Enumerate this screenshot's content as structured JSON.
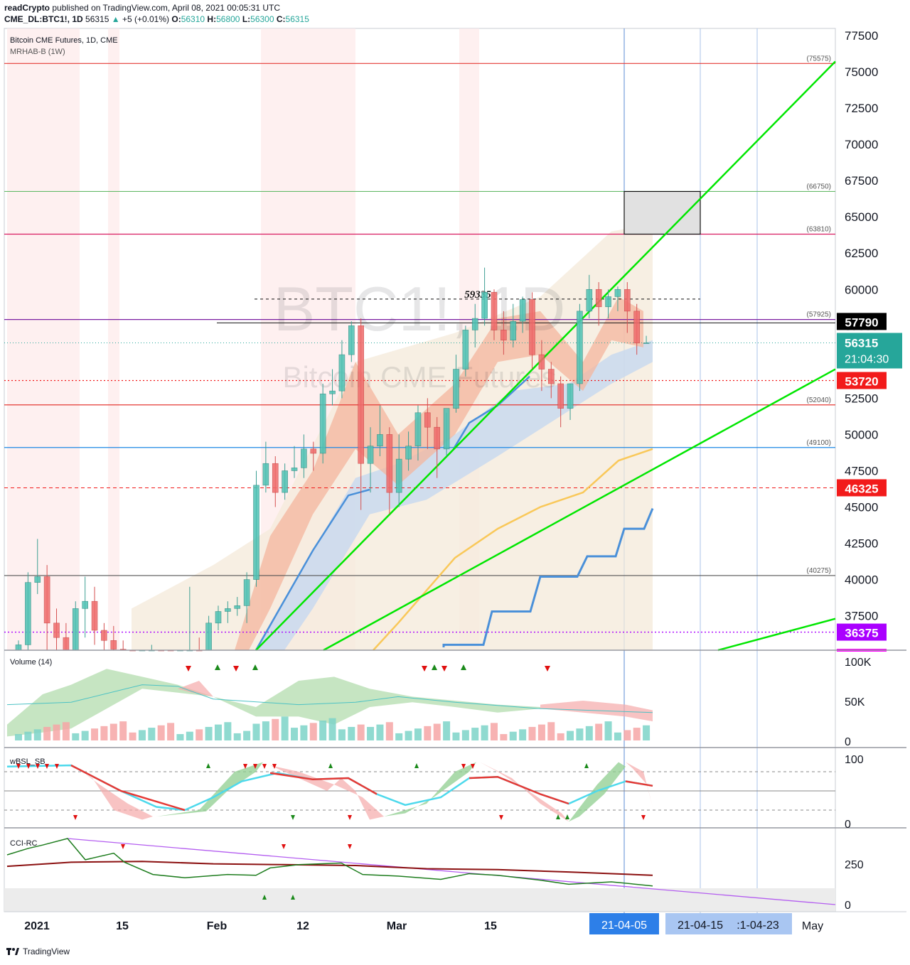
{
  "header": {
    "publisher": "readCrypto",
    "published_text": "published on TradingView.com, April 08, 2021 00:05:31 UTC",
    "symbol": "CME_DL:BTC1!, 1D",
    "last": "56315",
    "change": "+5 (+0.01%)",
    "open_label": "O:",
    "open": "56310",
    "high_label": "H:",
    "high": "56800",
    "low_label": "L:",
    "low": "56300",
    "close_label": "C:",
    "close": "56315"
  },
  "main_pane": {
    "title": "Bitcoin CME Futures, 1D, CME",
    "indicator": "MRHAB-B (1W)",
    "watermark_symbol": "BTC1!, 1D",
    "watermark_name": "Bitcoin CME Futures",
    "annotation": "59335",
    "price_axis": [
      "77500",
      "75000",
      "72500",
      "70000",
      "67500",
      "65000",
      "62500",
      "60000",
      "57500",
      "55000",
      "52500",
      "50000",
      "47500",
      "45000",
      "42500",
      "40000",
      "37500"
    ],
    "levels": [
      {
        "value": 75575,
        "label": "(75575)",
        "color": "#e53935",
        "style": "solid"
      },
      {
        "value": 66750,
        "label": "(66750)",
        "color": "#66bb6a",
        "style": "solid"
      },
      {
        "value": 63810,
        "label": "(63810)",
        "color": "#d81b60",
        "style": "solid"
      },
      {
        "value": 57925,
        "label": "(57925)",
        "color": "#7b1fa2",
        "style": "solid"
      },
      {
        "value": 52040,
        "label": "(52040)",
        "color": "#e53935",
        "style": "solid"
      },
      {
        "value": 49100,
        "label": "(49100)",
        "color": "#1e88e5",
        "style": "solid"
      },
      {
        "value": 40275,
        "label": "(40275)",
        "color": "#555555",
        "style": "solid"
      }
    ],
    "price_tags": [
      {
        "value": 57790,
        "label": "57790",
        "bg": "#000000",
        "fg": "#ffffff"
      },
      {
        "value": 53720,
        "label": "53720",
        "bg": "#f21b1b",
        "fg": "#ffffff"
      },
      {
        "value": 46325,
        "label": "46325",
        "bg": "#f21b1b",
        "fg": "#ffffff"
      },
      {
        "value": 36375,
        "label": "36375",
        "bg": "#aa00ff",
        "fg": "#ffffff"
      }
    ],
    "current_price": {
      "price": "56315",
      "countdown": "21:04:30",
      "value": 56315
    }
  },
  "volume_pane": {
    "title": "Volume (14)",
    "axis": [
      "100K",
      "50K",
      "0"
    ]
  },
  "wbsl_pane": {
    "title": "wBSL_SB",
    "axis": [
      "100",
      "0"
    ]
  },
  "cci_pane": {
    "title": "CCI-RC",
    "axis": [
      "250",
      "0"
    ]
  },
  "time_axis": {
    "labels": [
      {
        "text": "2021",
        "bold": true
      },
      {
        "text": "15",
        "bold": true
      },
      {
        "text": "Feb",
        "bold": true
      },
      {
        "text": "12",
        "bold": true
      },
      {
        "text": "Mar",
        "bold": true
      },
      {
        "text": "15",
        "bold": true
      },
      {
        "text": "May",
        "bold": false
      }
    ],
    "highlight_labels": [
      "21-04-05",
      "21-04-15",
      ":1-04-23"
    ]
  },
  "footer": {
    "brand": "TradingView"
  },
  "colors": {
    "up": "#26a69a",
    "down": "#ef5350",
    "trend": "#00e600",
    "ma_orange": "#f9c859",
    "ma_blue": "#4a90d9"
  },
  "chart_data": {
    "type": "candlestick",
    "title": "Bitcoin CME Futures, 1D, CME",
    "ylim": [
      35000,
      78500
    ],
    "candles": [
      [
        33000,
        35800,
        32500,
        35500
      ],
      [
        35500,
        40500,
        34800,
        39800
      ],
      [
        39800,
        42800,
        39000,
        40200
      ],
      [
        40200,
        41000,
        35000,
        37000
      ],
      [
        37000,
        38000,
        34500,
        36000
      ],
      [
        36000,
        37000,
        33500,
        35000
      ],
      [
        35000,
        38500,
        34000,
        38000
      ],
      [
        38000,
        40200,
        36000,
        38500
      ],
      [
        38500,
        39500,
        35500,
        36500
      ],
      [
        36500,
        37000,
        35000,
        35800
      ],
      [
        35800,
        36800,
        34000,
        35200
      ],
      [
        35200,
        35800,
        32500,
        33200
      ],
      [
        33200,
        34000,
        31500,
        32300
      ],
      [
        32300,
        34500,
        32000,
        34000
      ],
      [
        34000,
        35500,
        33500,
        34500
      ],
      [
        34500,
        35000,
        32500,
        33500
      ],
      [
        33500,
        34200,
        32000,
        33000
      ],
      [
        33000,
        34500,
        32500,
        34000
      ],
      [
        34000,
        39500,
        33500,
        35000
      ],
      [
        35000,
        36000,
        33000,
        33800
      ],
      [
        33800,
        37500,
        33500,
        37000
      ],
      [
        37000,
        38200,
        36500,
        37800
      ],
      [
        37800,
        38500,
        37000,
        38000
      ],
      [
        38000,
        38800,
        37500,
        38200
      ],
      [
        38200,
        40500,
        37000,
        40000
      ],
      [
        40000,
        47500,
        39500,
        46500
      ],
      [
        46500,
        49500,
        46000,
        48000
      ],
      [
        48000,
        48500,
        45000,
        46000
      ],
      [
        46000,
        48000,
        45500,
        47500
      ],
      [
        47500,
        49200,
        47000,
        47700
      ],
      [
        47700,
        50000,
        47000,
        49000
      ],
      [
        49000,
        49500,
        47500,
        48700
      ],
      [
        48700,
        53500,
        48000,
        52800
      ],
      [
        52800,
        54500,
        52000,
        53000
      ],
      [
        53000,
        56500,
        52500,
        55500
      ],
      [
        55500,
        57800,
        55000,
        57500
      ],
      [
        57500,
        58000,
        44800,
        48000
      ],
      [
        48000,
        50500,
        46000,
        49200
      ],
      [
        49200,
        52000,
        48500,
        50000
      ],
      [
        50000,
        50500,
        44500,
        46000
      ],
      [
        46000,
        50000,
        45000,
        48300
      ],
      [
        48300,
        50200,
        47500,
        49200
      ],
      [
        49200,
        52000,
        48200,
        51500
      ],
      [
        51500,
        52500,
        49000,
        50500
      ],
      [
        50500,
        51200,
        47000,
        49000
      ],
      [
        49000,
        51500,
        48500,
        51800
      ],
      [
        51800,
        55500,
        51500,
        54500
      ],
      [
        54500,
        57500,
        54000,
        57200
      ],
      [
        57200,
        59000,
        56000,
        58000
      ],
      [
        58000,
        61500,
        57500,
        59800
      ],
      [
        59800,
        60000,
        56500,
        57200
      ],
      [
        57200,
        58500,
        55500,
        56500
      ],
      [
        56500,
        59000,
        56000,
        57800
      ],
      [
        57800,
        59500,
        57000,
        59300
      ],
      [
        59300,
        59800,
        54500,
        55500
      ],
      [
        55500,
        56500,
        53000,
        54500
      ],
      [
        54500,
        55000,
        52500,
        53500
      ],
      [
        53500,
        54000,
        50500,
        51800
      ],
      [
        51800,
        53500,
        51000,
        53500
      ],
      [
        53500,
        59000,
        53000,
        58500
      ],
      [
        58500,
        61000,
        58000,
        60000
      ],
      [
        60000,
        60500,
        57500,
        58800
      ],
      [
        58800,
        60000,
        58000,
        59500
      ],
      [
        59500,
        60200,
        58500,
        60000
      ],
      [
        60000,
        60500,
        57000,
        58500
      ],
      [
        58500,
        59000,
        55500,
        56300
      ],
      [
        56310,
        56800,
        56300,
        56315
      ]
    ],
    "levels": [
      75575,
      66750,
      63810,
      57925,
      52040,
      49100,
      40275
    ],
    "price_tags": [
      57790,
      53720,
      46325,
      36375
    ],
    "annotation_price": 59335
  }
}
